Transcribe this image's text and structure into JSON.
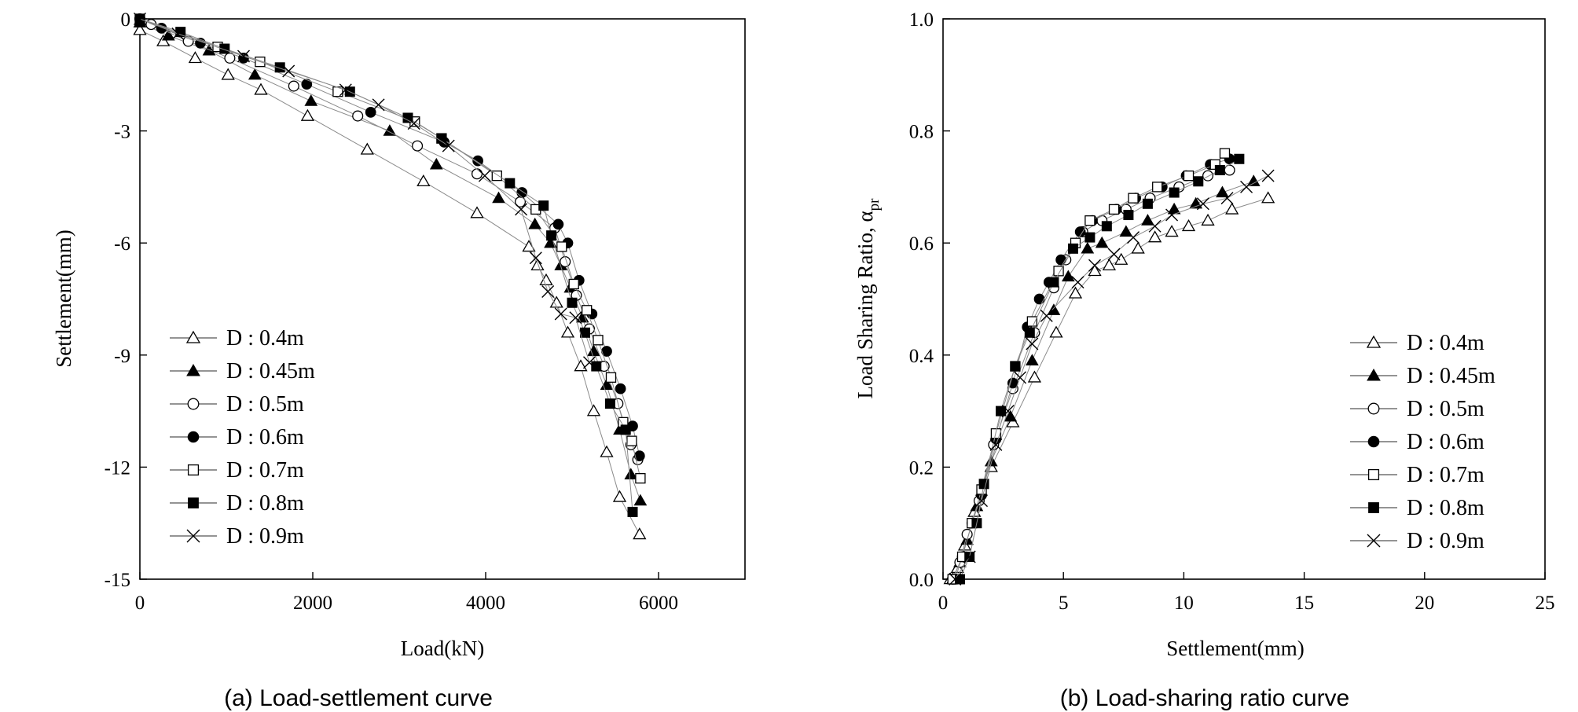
{
  "chart_data": [
    {
      "type": "line",
      "panel": "a",
      "caption": "(a) Load-settlement curve",
      "xlabel": "Load(kN)",
      "ylabel": "Settlement(mm)",
      "xlim": [
        0,
        7000
      ],
      "ylim": [
        -15,
        0
      ],
      "xticks": [
        0,
        2000,
        4000,
        6000
      ],
      "xtick_labels": [
        "0",
        "2000",
        "4000",
        "6000"
      ],
      "yticks": [
        0,
        -3,
        -6,
        -9,
        -12,
        -15
      ],
      "ytick_labels": [
        "0",
        "-3",
        "-6",
        "-9",
        "-12",
        "-15"
      ],
      "grid": false,
      "legend_position": "bottom-left",
      "series": [
        {
          "name": "D : 0.4m",
          "marker": "triangle-open",
          "x": [
            0,
            270,
            640,
            1020,
            1400,
            1940,
            2630,
            3280,
            3900,
            4500,
            4600,
            4700,
            4820,
            4950,
            5100,
            5250,
            5400,
            5550,
            5780
          ],
          "y": [
            -0.3,
            -0.6,
            -1.05,
            -1.5,
            -1.9,
            -2.6,
            -3.5,
            -4.35,
            -5.2,
            -6.1,
            -6.6,
            -7.0,
            -7.6,
            -8.4,
            -9.3,
            -10.5,
            -11.6,
            -12.8,
            -13.8
          ]
        },
        {
          "name": "D : 0.45m",
          "marker": "triangle-filled",
          "x": [
            0,
            330,
            800,
            1330,
            1980,
            2890,
            3430,
            4150,
            4570,
            4750,
            4870,
            4980,
            5120,
            5250,
            5400,
            5550,
            5680,
            5790
          ],
          "y": [
            -0.1,
            -0.45,
            -0.85,
            -1.5,
            -2.2,
            -3.0,
            -3.9,
            -4.8,
            -5.5,
            -6.0,
            -6.6,
            -7.2,
            -8.0,
            -8.9,
            -9.8,
            -11.0,
            -12.2,
            -12.9
          ]
        },
        {
          "name": "D : 0.5m",
          "marker": "circle-open",
          "x": [
            0,
            130,
            560,
            1040,
            1780,
            2520,
            3210,
            3900,
            4400,
            4800,
            4920,
            5050,
            5200,
            5370,
            5530,
            5680,
            5760
          ],
          "y": [
            0,
            -0.15,
            -0.6,
            -1.05,
            -1.8,
            -2.6,
            -3.4,
            -4.15,
            -4.9,
            -5.6,
            -6.5,
            -7.4,
            -8.3,
            -9.3,
            -10.3,
            -11.4,
            -11.8
          ]
        },
        {
          "name": "D : 0.6m",
          "marker": "circle-filled",
          "x": [
            0,
            250,
            700,
            1200,
            1930,
            2670,
            3520,
            3910,
            4420,
            4840,
            4950,
            5080,
            5230,
            5400,
            5560,
            5700,
            5780
          ],
          "y": [
            0,
            -0.25,
            -0.65,
            -1.05,
            -1.75,
            -2.5,
            -3.3,
            -3.8,
            -4.65,
            -5.5,
            -6.0,
            -7.0,
            -7.9,
            -8.9,
            -9.9,
            -10.9,
            -11.7
          ]
        },
        {
          "name": "D : 0.7m",
          "marker": "square-open",
          "x": [
            0,
            900,
            1390,
            2290,
            3180,
            3490,
            4130,
            4580,
            4880,
            5020,
            5170,
            5300,
            5450,
            5590,
            5690,
            5790
          ],
          "y": [
            0,
            -0.75,
            -1.15,
            -1.95,
            -2.75,
            -3.2,
            -4.2,
            -5.1,
            -6.1,
            -7.1,
            -7.8,
            -8.6,
            -9.6,
            -10.8,
            -11.3,
            -12.3
          ]
        },
        {
          "name": "D : 0.8m",
          "marker": "square-filled",
          "x": [
            0,
            470,
            980,
            1620,
            2430,
            3100,
            3490,
            4280,
            4670,
            4760,
            5000,
            5150,
            5280,
            5440,
            5620,
            5700
          ],
          "y": [
            0,
            -0.35,
            -0.8,
            -1.3,
            -1.95,
            -2.65,
            -3.2,
            -4.4,
            -5.0,
            -5.8,
            -7.6,
            -8.4,
            -9.3,
            -10.3,
            -11.0,
            -13.2
          ]
        },
        {
          "name": "D : 0.9m",
          "marker": "cross",
          "x": [
            0,
            440,
            1200,
            1720,
            2380,
            2760,
            3170,
            3570,
            3990,
            4410,
            4580,
            4720,
            4870,
            5040,
            5200
          ],
          "y": [
            0,
            -0.4,
            -1.0,
            -1.4,
            -1.9,
            -2.3,
            -2.8,
            -3.4,
            -4.2,
            -5.1,
            -6.4,
            -7.3,
            -7.9,
            -8.0,
            -9.2
          ]
        }
      ]
    },
    {
      "type": "line",
      "panel": "b",
      "caption": "(b) Load-sharing ratio curve",
      "xlabel": "Settlement(mm)",
      "ylabel": "Load Sharing Ratio, α",
      "ylabel_subscript": "pr",
      "xlim": [
        0,
        25
      ],
      "ylim": [
        0,
        1.0
      ],
      "xticks": [
        0,
        5,
        10,
        15,
        20,
        25
      ],
      "xtick_labels": [
        "0",
        "5",
        "10",
        "15",
        "20",
        "25"
      ],
      "yticks": [
        0,
        0.2,
        0.4,
        0.6,
        0.8,
        1.0
      ],
      "ytick_labels": [
        "0.0",
        "0.2",
        "0.4",
        "0.6",
        "0.8",
        "1.0"
      ],
      "grid": false,
      "legend_position": "bottom-right",
      "series": [
        {
          "name": "D : 0.4m",
          "marker": "triangle-open",
          "x": [
            0.3,
            0.6,
            0.9,
            1.3,
            2.0,
            2.9,
            3.8,
            4.7,
            5.5,
            6.3,
            6.9,
            7.4,
            8.1,
            8.8,
            9.5,
            10.2,
            11.0,
            12.0,
            13.5
          ],
          "y": [
            0.0,
            0.02,
            0.06,
            0.12,
            0.2,
            0.28,
            0.36,
            0.44,
            0.51,
            0.55,
            0.56,
            0.57,
            0.59,
            0.61,
            0.62,
            0.63,
            0.64,
            0.66,
            0.68
          ]
        },
        {
          "name": "D : 0.45m",
          "marker": "triangle-filled",
          "x": [
            0.4,
            0.7,
            1.0,
            1.4,
            2.0,
            2.8,
            3.7,
            4.6,
            5.2,
            6.0,
            6.6,
            7.6,
            8.5,
            9.6,
            10.5,
            11.6,
            12.9
          ],
          "y": [
            0.0,
            0.03,
            0.07,
            0.13,
            0.21,
            0.29,
            0.39,
            0.48,
            0.54,
            0.59,
            0.6,
            0.62,
            0.64,
            0.66,
            0.67,
            0.69,
            0.71
          ]
        },
        {
          "name": "D : 0.5m",
          "marker": "circle-open",
          "x": [
            0.4,
            0.7,
            1.0,
            1.5,
            2.1,
            2.9,
            3.8,
            4.6,
            5.1,
            5.8,
            6.6,
            7.6,
            8.6,
            9.8,
            11.0,
            11.9
          ],
          "y": [
            0.0,
            0.03,
            0.08,
            0.14,
            0.24,
            0.34,
            0.44,
            0.52,
            0.57,
            0.62,
            0.64,
            0.66,
            0.68,
            0.7,
            0.72,
            0.73
          ]
        },
        {
          "name": "D : 0.6m",
          "marker": "circle-filled",
          "x": [
            0.5,
            0.8,
            1.2,
            1.6,
            2.2,
            2.9,
            3.5,
            4.0,
            4.4,
            4.9,
            5.7,
            6.2,
            7.2,
            8.0,
            9.1,
            10.1,
            11.1,
            11.9
          ],
          "y": [
            0.0,
            0.04,
            0.1,
            0.15,
            0.25,
            0.35,
            0.45,
            0.5,
            0.53,
            0.57,
            0.62,
            0.64,
            0.66,
            0.68,
            0.7,
            0.72,
            0.74,
            0.75
          ]
        },
        {
          "name": "D : 0.7m",
          "marker": "square-open",
          "x": [
            0.4,
            0.8,
            1.2,
            1.6,
            2.2,
            3.0,
            3.7,
            4.8,
            5.5,
            6.1,
            7.1,
            7.9,
            8.9,
            10.2,
            11.3,
            11.7
          ],
          "y": [
            0.0,
            0.04,
            0.1,
            0.16,
            0.26,
            0.38,
            0.46,
            0.55,
            0.6,
            0.64,
            0.66,
            0.68,
            0.7,
            0.72,
            0.74,
            0.76
          ]
        },
        {
          "name": "D : 0.8m",
          "marker": "square-filled",
          "x": [
            0.7,
            1.1,
            1.4,
            1.7,
            2.4,
            3.0,
            3.6,
            4.6,
            5.4,
            6.1,
            6.8,
            7.7,
            8.5,
            9.6,
            10.6,
            11.5,
            12.3
          ],
          "y": [
            0.0,
            0.04,
            0.1,
            0.17,
            0.3,
            0.38,
            0.44,
            0.53,
            0.59,
            0.61,
            0.63,
            0.65,
            0.67,
            0.69,
            0.71,
            0.73,
            0.75
          ]
        },
        {
          "name": "D : 0.9m",
          "marker": "cross",
          "x": [
            0.5,
            1.1,
            1.6,
            2.2,
            2.7,
            3.2,
            3.7,
            4.3,
            5.6,
            6.3,
            7.1,
            7.9,
            8.8,
            9.5,
            10.8,
            11.8,
            12.6,
            13.5
          ],
          "y": [
            0.0,
            0.04,
            0.14,
            0.24,
            0.3,
            0.36,
            0.42,
            0.47,
            0.53,
            0.56,
            0.58,
            0.61,
            0.63,
            0.65,
            0.67,
            0.68,
            0.7,
            0.72
          ]
        }
      ]
    }
  ]
}
